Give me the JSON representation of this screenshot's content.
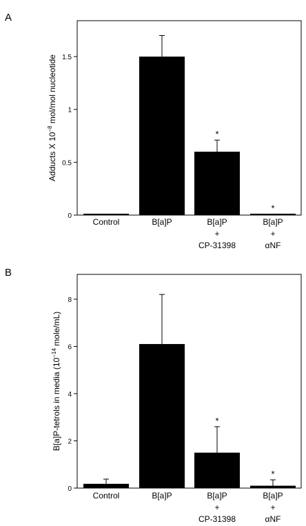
{
  "chart_data": [
    {
      "panel": "A",
      "type": "bar",
      "categories": [
        [
          "Control"
        ],
        [
          "B[a]P"
        ],
        [
          "B[a]P",
          "+",
          "CP-31398"
        ],
        [
          "B[a]P",
          "+",
          "αNF"
        ]
      ],
      "values": [
        0.01,
        1.5,
        0.6,
        0.01
      ],
      "errors": [
        0.0,
        0.2,
        0.11,
        0.0
      ],
      "significance": [
        "",
        "",
        "*",
        "*"
      ],
      "ylabel_parts": [
        "Adducts X 10",
        "−8",
        " mol/mol nucleotide"
      ],
      "ylim": [
        0,
        1.84
      ],
      "yticks": [
        0,
        0.5,
        1,
        1.5
      ],
      "ytick_labels": [
        "0",
        "0.5",
        "1",
        "1.5"
      ],
      "bar_color": "#000000"
    },
    {
      "panel": "B",
      "type": "bar",
      "categories": [
        [
          "Control"
        ],
        [
          "B[a]P"
        ],
        [
          "B[a]P",
          "+",
          "CP-31398"
        ],
        [
          "B[a]P",
          "+",
          "αNF"
        ]
      ],
      "values": [
        0.18,
        6.1,
        1.5,
        0.1
      ],
      "errors": [
        0.2,
        2.1,
        1.1,
        0.25
      ],
      "significance": [
        "",
        "",
        "*",
        "*"
      ],
      "ylabel_parts": [
        "B[a]P-tetrols in media (10",
        "−14",
        " mole/mL)"
      ],
      "ylim": [
        0,
        9.05
      ],
      "yticks": [
        0,
        2,
        4,
        6,
        8
      ],
      "ytick_labels": [
        "0",
        "2",
        "4",
        "6",
        "8"
      ],
      "bar_color": "#000000"
    }
  ]
}
